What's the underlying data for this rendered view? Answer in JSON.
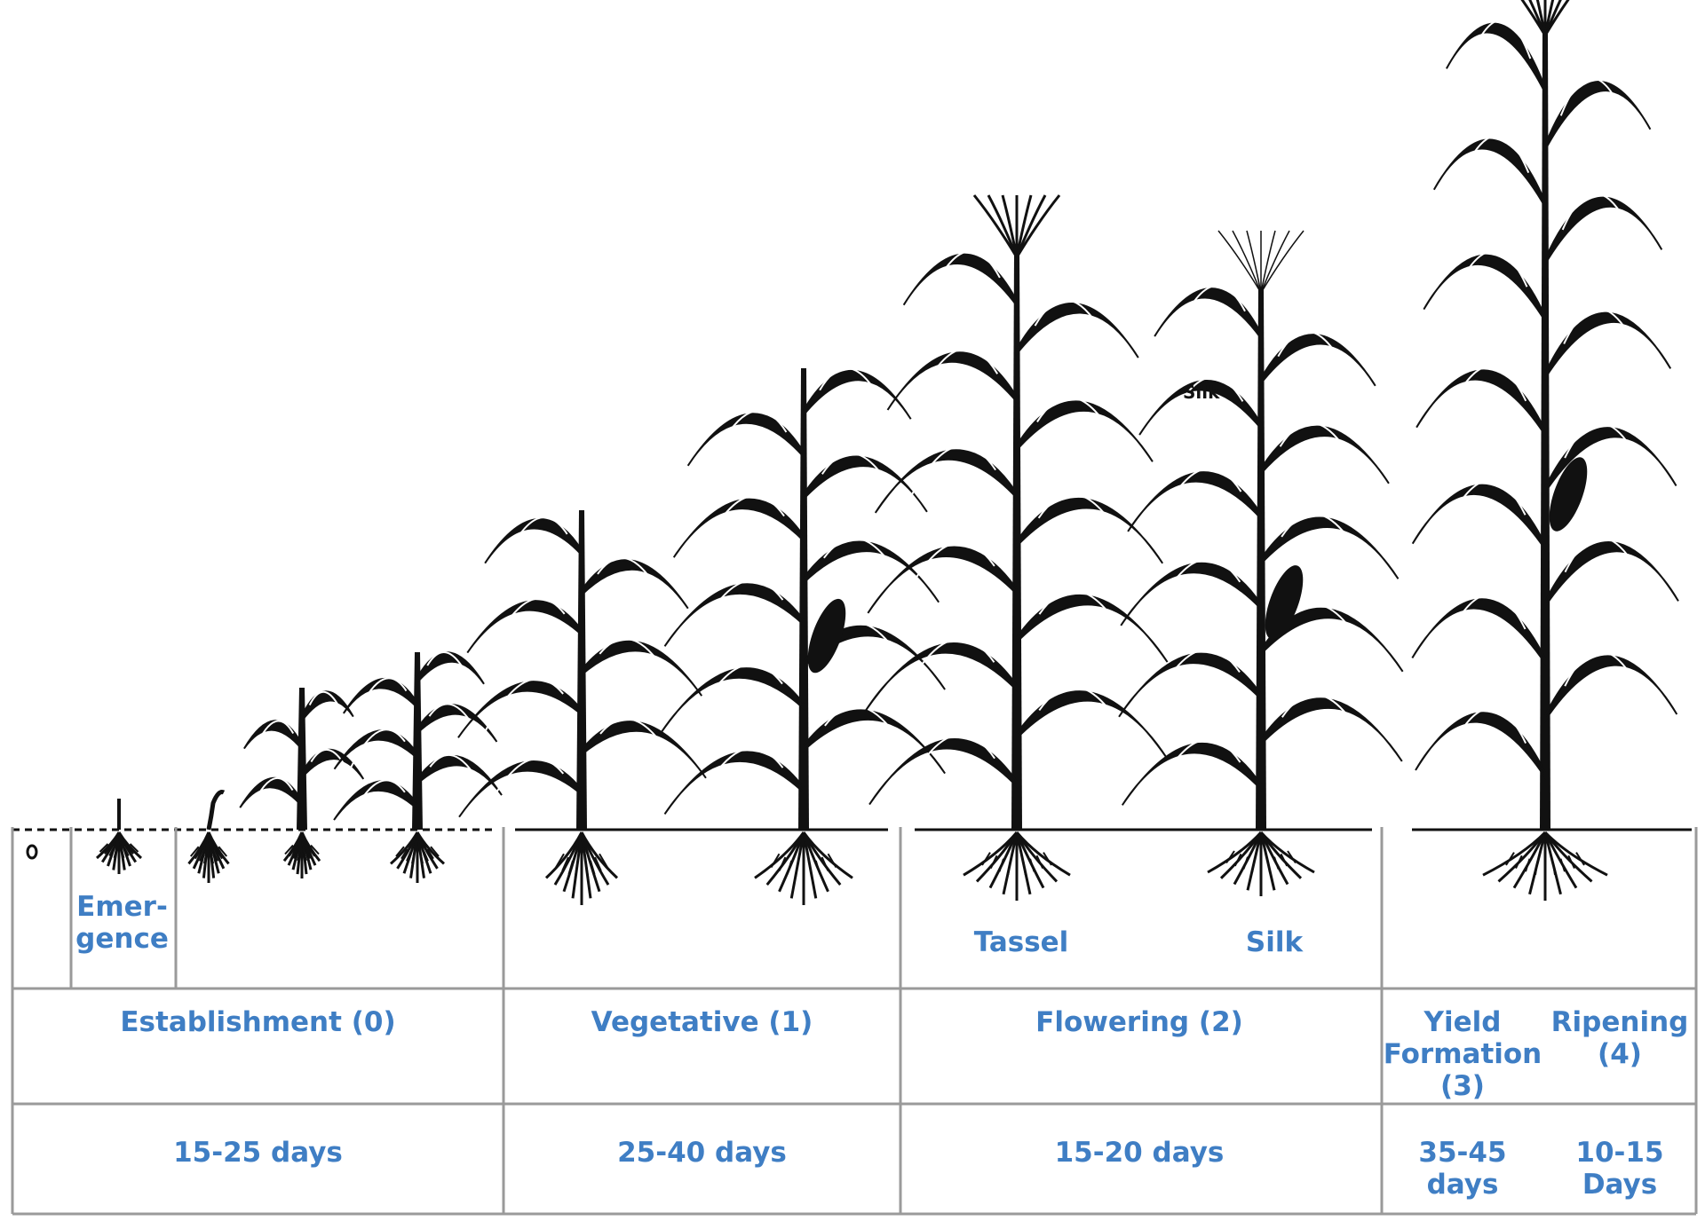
{
  "colors": {
    "label": "#3f7ec4",
    "rule": "#9a9a9a",
    "plant": "#111111"
  },
  "plant_labels": {
    "emergence": "Emer-\ngence",
    "tassel": "Tassel",
    "silk": "Silk",
    "silk_callout": "Silk"
  },
  "stages": [
    {
      "name": "Establishment (0)",
      "duration": "15-25 days"
    },
    {
      "name": "Vegetative (1)",
      "duration": "25-40 days"
    },
    {
      "name": "Flowering (2)",
      "duration": "15-20 days"
    },
    {
      "name": "Yield\nFormation\n(3)",
      "duration": "35-45\ndays"
    },
    {
      "name": "Ripening\n(4)",
      "duration": "10-15\nDays"
    }
  ]
}
